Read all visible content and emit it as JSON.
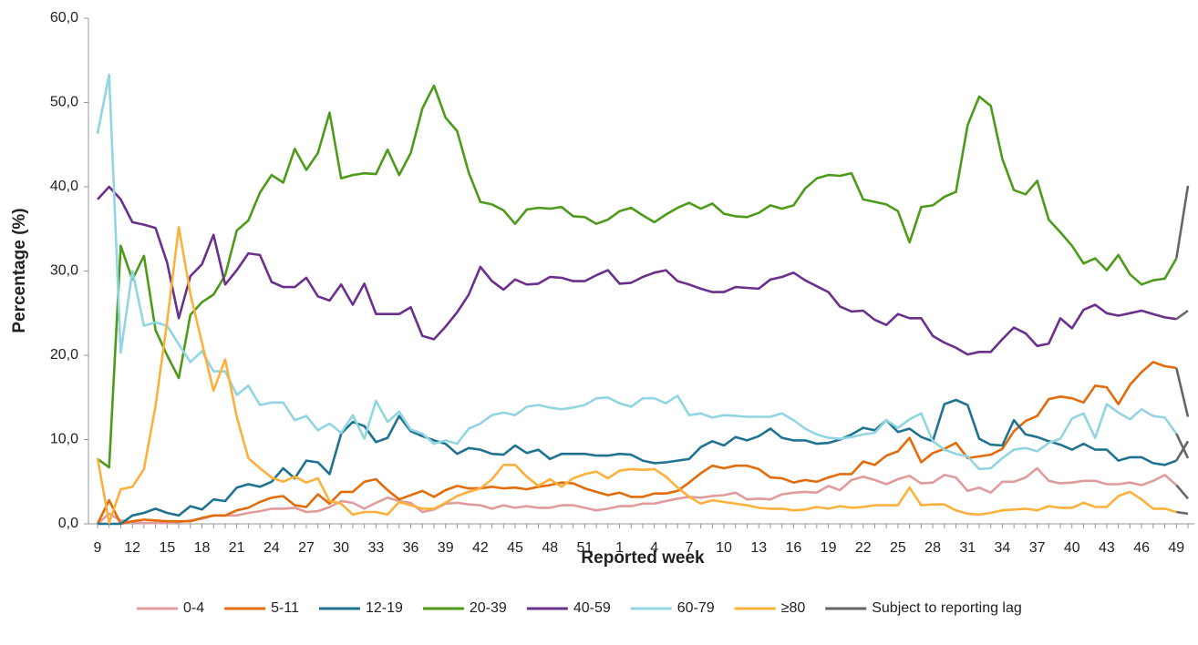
{
  "chart_data": {
    "type": "line",
    "x_label": "Reported week",
    "y_label": "Percentage (%)",
    "categories": [
      "9",
      null,
      null,
      "12",
      null,
      null,
      "15",
      null,
      null,
      "18",
      null,
      null,
      "21",
      null,
      null,
      "24",
      null,
      null,
      "27",
      null,
      null,
      "30",
      null,
      null,
      "33",
      null,
      null,
      "36",
      null,
      null,
      "39",
      null,
      null,
      "42",
      null,
      null,
      "45",
      null,
      null,
      "48",
      null,
      null,
      "51",
      null,
      null,
      "1",
      null,
      null,
      "4",
      null,
      null,
      "7",
      null,
      null,
      "10",
      null,
      null,
      "13",
      null,
      null,
      "16",
      null,
      null,
      "19",
      null,
      null,
      "22",
      null,
      null,
      "25",
      null,
      null,
      "28",
      null,
      null,
      "31",
      null,
      null,
      "34",
      null,
      null,
      "37",
      null,
      null,
      "40",
      null,
      null,
      "43",
      null,
      null,
      "46",
      null,
      null,
      "49",
      null
    ],
    "ylim": [
      0,
      60
    ],
    "yticks": [
      {
        "value": 0,
        "label": "0,0"
      },
      {
        "value": 10,
        "label": "10,0"
      },
      {
        "value": 20,
        "label": "20,0"
      },
      {
        "value": 30,
        "label": "30,0"
      },
      {
        "value": 40,
        "label": "40,0"
      },
      {
        "value": 50,
        "label": "50,0"
      },
      {
        "value": 60,
        "label": "60,0"
      }
    ],
    "grid": false,
    "legend": "bottom",
    "series": [
      {
        "name": "0-4",
        "color": "#e09c9c",
        "values": [
          0,
          1.2,
          0.4,
          0.2,
          0.1,
          0.1,
          0.1,
          0.2,
          0.4,
          0.6,
          1,
          1,
          1,
          1.3,
          1.5,
          1.8,
          1.8,
          1.9,
          1.4,
          1.5,
          2,
          2.7,
          2.5,
          1.8,
          2.5,
          3.1,
          2.7,
          2.5,
          1.4,
          1.7,
          2.4,
          2.5,
          2.3,
          2.2,
          1.8,
          2.2,
          1.9,
          2.1,
          1.9,
          1.9,
          2.2,
          2.2,
          1.9,
          1.6,
          1.8,
          2.1,
          2.1,
          2.4,
          2.4,
          2.7,
          3,
          3.2,
          3.1,
          3.3,
          3.4,
          3.7,
          2.9,
          3,
          2.9,
          3.5,
          3.7,
          3.8,
          3.7,
          4.5,
          4,
          5.2,
          5.6,
          5.2,
          4.7,
          5.3,
          5.7,
          4.8,
          4.9,
          5.8,
          5.5,
          3.9,
          4.3,
          3.7,
          5,
          5,
          5.5,
          6.6,
          5.1,
          4.8,
          4.9,
          5.1,
          5.1,
          4.7,
          4.7,
          4.9,
          4.6,
          5.1,
          5.8,
          4.6,
          3
        ]
      },
      {
        "name": "5-11",
        "color": "#e36c0a",
        "values": [
          0,
          2.8,
          0,
          0.3,
          0.5,
          0.4,
          0.3,
          0.3,
          0.3,
          0.7,
          1,
          1,
          1.6,
          1.9,
          2.6,
          3.1,
          3.3,
          2.2,
          2,
          3.5,
          2.4,
          3.8,
          3.8,
          5,
          5.3,
          4,
          2.9,
          3.4,
          3.9,
          3.2,
          4,
          4.5,
          4.2,
          4.2,
          4.4,
          4.2,
          4.3,
          4.1,
          4.4,
          4.6,
          4.9,
          4.8,
          4.2,
          3.8,
          3.4,
          3.7,
          3.2,
          3.2,
          3.6,
          3.6,
          3.9,
          4.9,
          6,
          6.9,
          6.6,
          6.9,
          6.9,
          6.5,
          5.5,
          5.4,
          4.9,
          5.2,
          5,
          5.5,
          5.9,
          5.9,
          7.4,
          7,
          8.1,
          8.6,
          10.2,
          7.3,
          8.4,
          8.9,
          9.6,
          7.8,
          8,
          8.2,
          8.9,
          11,
          12.2,
          12.8,
          14.8,
          15.1,
          14.9,
          14.4,
          16.4,
          16.2,
          14.2,
          16.5,
          18,
          19.2,
          18.7,
          18.5,
          12.7
        ]
      },
      {
        "name": "12-19",
        "color": "#1f7391",
        "values": [
          0,
          0,
          0,
          1,
          1.3,
          1.8,
          1.3,
          1,
          2.1,
          1.7,
          2.9,
          2.7,
          4.3,
          4.7,
          4.4,
          5,
          6.6,
          5.4,
          7.5,
          7.3,
          5.9,
          10.7,
          12.1,
          11.6,
          9.7,
          10.2,
          12.8,
          11,
          10.4,
          9.9,
          9.5,
          8.3,
          9,
          8.8,
          8.3,
          8.2,
          9.3,
          8.4,
          8.8,
          7.7,
          8.3,
          8.3,
          8.3,
          8.1,
          8.1,
          8.3,
          8.2,
          7.5,
          7.2,
          7.3,
          7.5,
          7.7,
          9.1,
          9.8,
          9.3,
          10.3,
          9.9,
          10.4,
          11.3,
          10.2,
          9.9,
          9.9,
          9.5,
          9.6,
          10,
          10.6,
          11.4,
          11.1,
          12.3,
          10.9,
          11.3,
          10.3,
          9.8,
          14.2,
          14.7,
          14.1,
          10.1,
          9.4,
          9.3,
          12.3,
          10.6,
          10.3,
          9.8,
          9.4,
          8.8,
          9.5,
          8.8,
          8.8,
          7.5,
          7.9,
          7.9,
          7.2,
          7,
          7.5,
          9.8
        ]
      },
      {
        "name": "20-39",
        "color": "#4e9a1a",
        "values": [
          7.7,
          6.7,
          33,
          29,
          31.8,
          23,
          20,
          17.3,
          24.8,
          26.3,
          27.2,
          29.5,
          34.8,
          36,
          39.3,
          41.4,
          40.5,
          44.5,
          42,
          44,
          48.8,
          41,
          41.4,
          41.6,
          41.5,
          44.4,
          41.4,
          44,
          49.3,
          52,
          48.2,
          46.6,
          41.7,
          38.2,
          37.9,
          37.2,
          35.6,
          37.3,
          37.5,
          37.4,
          37.6,
          36.5,
          36.4,
          35.6,
          36.1,
          37.1,
          37.5,
          36.6,
          35.8,
          36.7,
          37.5,
          38.1,
          37.4,
          38,
          36.8,
          36.5,
          36.4,
          36.9,
          37.8,
          37.4,
          37.8,
          39.8,
          41,
          41.4,
          41.3,
          41.6,
          38.5,
          38.2,
          37.9,
          37.1,
          33.4,
          37.6,
          37.8,
          38.8,
          39.4,
          47.3,
          50.7,
          49.6,
          43.3,
          39.6,
          39.1,
          40.7,
          36.1,
          34.6,
          33,
          30.9,
          31.5,
          30.1,
          31.9,
          29.6,
          28.4,
          28.9,
          29.1,
          31.5,
          40.1
        ]
      },
      {
        "name": "40-59",
        "color": "#6b2f8c",
        "values": [
          38.5,
          40,
          38.5,
          35.8,
          35.5,
          35.1,
          31,
          24.4,
          29.4,
          30.8,
          34.3,
          28.4,
          30.1,
          32.1,
          31.9,
          28.7,
          28.1,
          28.1,
          29.2,
          27,
          26.5,
          28.4,
          26,
          28.5,
          24.9,
          24.9,
          24.9,
          25.7,
          22.3,
          21.9,
          23.4,
          25.1,
          27.2,
          30.5,
          28.8,
          27.8,
          29,
          28.4,
          28.5,
          29.3,
          29.2,
          28.8,
          28.8,
          29.5,
          30.1,
          28.5,
          28.6,
          29.3,
          29.8,
          30.1,
          28.8,
          28.4,
          27.9,
          27.5,
          27.5,
          28.1,
          28,
          27.9,
          29,
          29.3,
          29.8,
          28.9,
          28.2,
          27.5,
          25.8,
          25.2,
          25.3,
          24.2,
          23.6,
          24.9,
          24.4,
          24.4,
          22.3,
          21.5,
          20.9,
          20.1,
          20.4,
          20.4,
          21.9,
          23.3,
          22.6,
          21.1,
          21.4,
          24.4,
          23.2,
          25.4,
          26,
          25,
          24.7,
          25,
          25.3,
          24.9,
          24.5,
          24.3,
          25.3
        ]
      },
      {
        "name": "60-79",
        "color": "#92d5e2",
        "values": [
          46.3,
          53.3,
          20.3,
          30,
          23.5,
          23.9,
          23.5,
          21.3,
          19.2,
          20.5,
          18.1,
          18.1,
          15.3,
          16.4,
          14.1,
          14.4,
          14.4,
          12.3,
          12.8,
          11.1,
          11.9,
          10.8,
          12.9,
          10.1,
          14.6,
          12.1,
          13.3,
          11.2,
          10.7,
          9.5,
          9.9,
          9.5,
          11.3,
          11.9,
          12.9,
          13.2,
          12.9,
          13.9,
          14.1,
          13.8,
          13.6,
          13.8,
          14.1,
          14.9,
          15,
          14.3,
          13.9,
          14.9,
          14.9,
          14.3,
          15.2,
          12.9,
          13.1,
          12.6,
          12.9,
          12.8,
          12.7,
          12.7,
          12.7,
          13.1,
          12.3,
          11.3,
          10.6,
          10.2,
          10.1,
          10.3,
          10.6,
          10.8,
          12.3,
          11.4,
          12.4,
          13.1,
          9.8,
          8.8,
          8.3,
          8,
          6.5,
          6.6,
          7.8,
          8.8,
          9,
          8.6,
          9.6,
          10.1,
          12.5,
          13.1,
          10.2,
          14.2,
          13.2,
          12.4,
          13.6,
          12.8,
          12.6,
          10.7,
          7.8
        ]
      },
      {
        "name": "≥80",
        "color": "#fbb13c",
        "values": [
          7.8,
          0.1,
          4.1,
          4.4,
          6.5,
          14,
          24,
          35.2,
          27.3,
          21.5,
          15.8,
          19.5,
          12.7,
          7.8,
          6.6,
          5.5,
          5,
          5.6,
          4.9,
          5.4,
          2.7,
          2.4,
          1.1,
          1.4,
          1.4,
          1.1,
          2.6,
          2.2,
          1.8,
          1.8,
          2.5,
          3.3,
          3.8,
          4.2,
          5.3,
          7,
          7,
          5.6,
          4.5,
          5.3,
          4.4,
          5.4,
          5.9,
          6.2,
          5.4,
          6.3,
          6.5,
          6.4,
          6.5,
          5.6,
          4.3,
          3.2,
          2.4,
          2.8,
          2.6,
          2.4,
          2.2,
          1.9,
          1.8,
          1.8,
          1.6,
          1.7,
          2,
          1.8,
          2.1,
          1.9,
          2,
          2.2,
          2.2,
          2.2,
          4.3,
          2.2,
          2.3,
          2.3,
          1.6,
          1.2,
          1.1,
          1.3,
          1.6,
          1.7,
          1.8,
          1.6,
          2.1,
          1.9,
          1.9,
          2.5,
          2,
          2,
          3.3,
          3.8,
          2.9,
          1.8,
          1.8,
          1.4,
          1.2
        ]
      },
      {
        "name": "Subject to reporting lag",
        "color": "#666666",
        "lag_points": 2
      }
    ]
  }
}
